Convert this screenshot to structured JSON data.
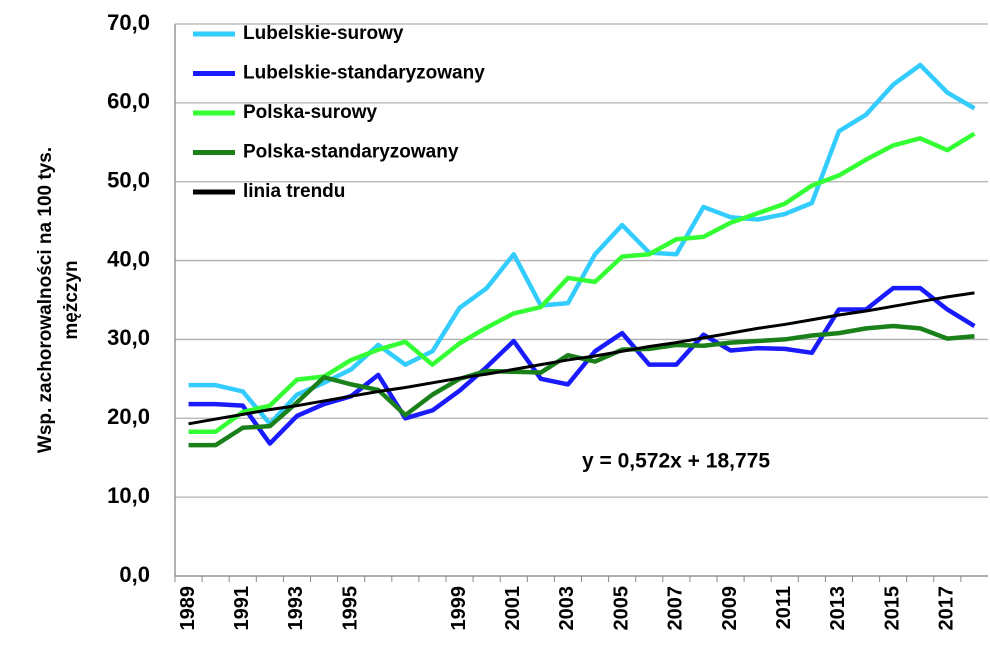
{
  "chart_data": {
    "type": "line",
    "y_label": "Wsp. zachorowalności na 100 tys. mężczyn",
    "categories": [
      "1989",
      null,
      "1991",
      null,
      "1993",
      null,
      "1995",
      null,
      null,
      null,
      "1999",
      null,
      "2001",
      null,
      "2003",
      null,
      "2005",
      null,
      "2007",
      null,
      "2009",
      null,
      "2011",
      null,
      "2013",
      null,
      "2015",
      null,
      "2017",
      null
    ],
    "series": [
      {
        "name": "Lubelskie-surowy",
        "color": "#33ccff",
        "values": [
          24.2,
          24.2,
          23.4,
          19.3,
          23.0,
          24.5,
          26.2,
          29.3,
          26.8,
          28.5,
          34.0,
          36.5,
          40.8,
          34.3,
          34.6,
          40.8,
          44.5,
          41.0,
          40.8,
          46.8,
          45.5,
          45.2,
          45.9,
          47.3,
          56.4,
          58.5,
          62.3,
          64.8,
          61.3,
          59.3
        ]
      },
      {
        "name": "Lubelskie-standaryzowany",
        "color": "#1a1aff",
        "values": [
          21.8,
          21.8,
          21.6,
          16.8,
          20.3,
          21.8,
          22.8,
          25.5,
          20.0,
          21.0,
          23.5,
          26.5,
          29.8,
          25.0,
          24.3,
          28.5,
          30.8,
          26.8,
          26.8,
          30.6,
          28.6,
          28.9,
          28.8,
          28.3,
          33.8,
          33.8,
          36.5,
          36.5,
          33.8,
          31.7
        ]
      },
      {
        "name": "Polska-surowy",
        "color": "#33ff33",
        "values": [
          18.3,
          18.3,
          20.8,
          21.6,
          24.9,
          25.3,
          27.4,
          28.7,
          29.7,
          26.8,
          29.5,
          31.5,
          33.3,
          34.1,
          37.8,
          37.3,
          40.5,
          40.8,
          42.7,
          43.0,
          44.8,
          46.0,
          47.2,
          49.5,
          50.8,
          52.8,
          54.6,
          55.5,
          54.0,
          56.1
        ]
      },
      {
        "name": "Polska-standaryzowany",
        "color": "#1a801a",
        "values": [
          16.6,
          16.6,
          18.8,
          19.0,
          22.0,
          25.2,
          24.3,
          23.6,
          20.4,
          23.0,
          25.0,
          26.0,
          25.9,
          25.8,
          28.0,
          27.2,
          28.7,
          28.8,
          29.3,
          29.2,
          29.6,
          29.8,
          30.0,
          30.5,
          30.8,
          31.4,
          31.7,
          31.4,
          30.1,
          30.4
        ]
      },
      {
        "name": "linia trendu",
        "color": "#000000",
        "values": [
          19.3,
          19.9,
          20.5,
          21.1,
          21.6,
          22.2,
          22.8,
          23.4,
          23.9,
          24.5,
          25.1,
          25.6,
          26.2,
          26.8,
          27.4,
          27.9,
          28.5,
          29.1,
          29.6,
          30.2,
          30.8,
          31.4,
          31.9,
          32.5,
          33.1,
          33.6,
          34.2,
          34.8,
          35.4,
          35.9
        ]
      }
    ],
    "annotation": "y = 0,572x + 18,775",
    "ylim": [
      0,
      70
    ],
    "yticks": [
      {
        "value": 0,
        "label": "0,0"
      },
      {
        "value": 10,
        "label": "10,0"
      },
      {
        "value": 20,
        "label": "20,0"
      },
      {
        "value": 30,
        "label": "30,0"
      },
      {
        "value": 40,
        "label": "40,0"
      },
      {
        "value": 50,
        "label": "50,0"
      },
      {
        "value": 60,
        "label": "60,0"
      },
      {
        "value": 70,
        "label": "70,0"
      }
    ],
    "grid": true,
    "legend": "upper left"
  }
}
